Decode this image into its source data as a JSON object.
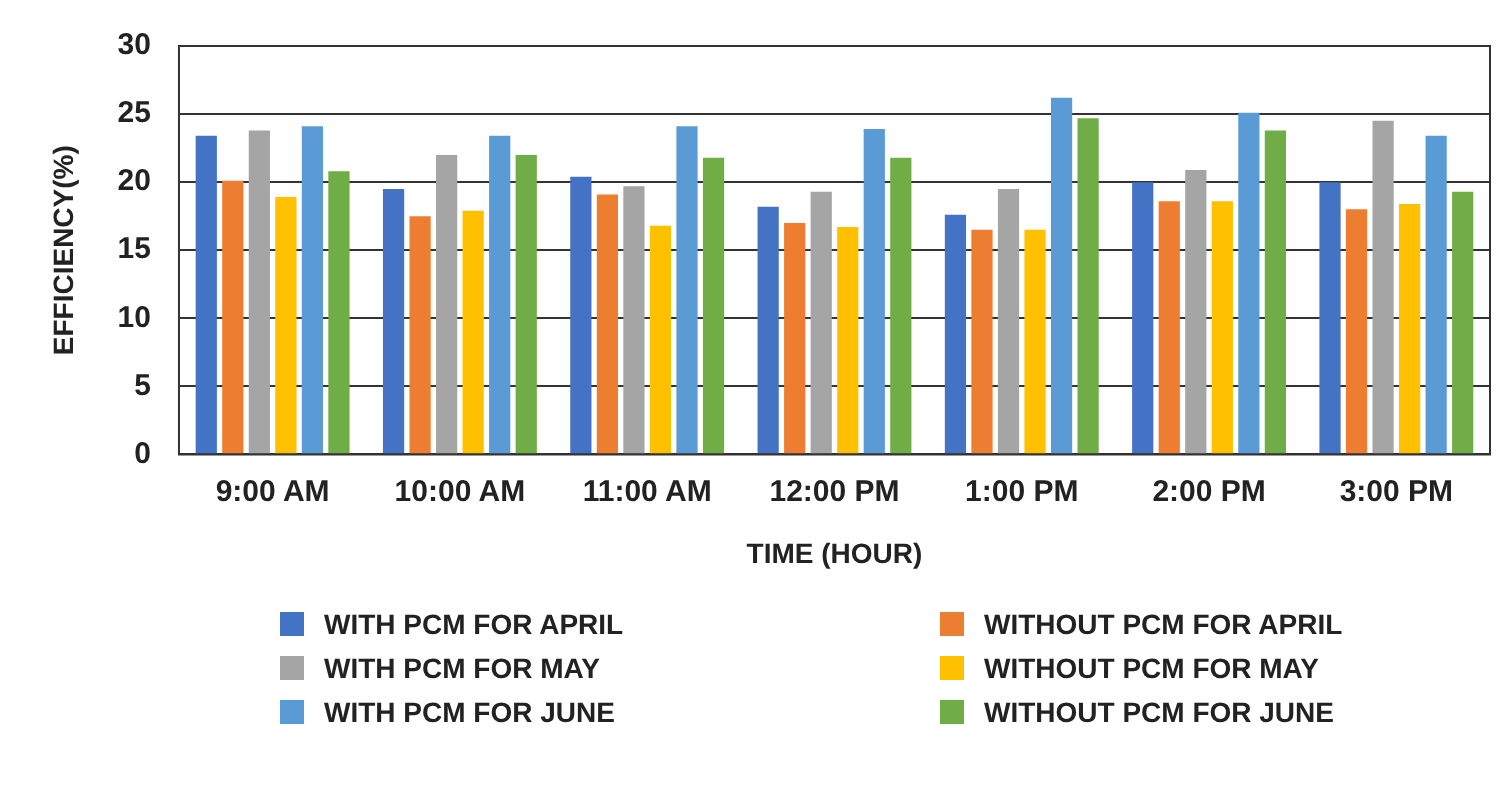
{
  "chart_data": {
    "type": "bar",
    "xlabel": "TIME (HOUR)",
    "ylabel": "EFFICIENCY(%)",
    "categories": [
      "9:00 AM",
      "10:00 AM",
      "11:00 AM",
      "12:00 PM",
      "1:00 PM",
      "2:00 PM",
      "3:00 PM"
    ],
    "series": [
      {
        "name": "WITH PCM FOR APRIL",
        "color": "#4472c4",
        "values": [
          23.4,
          19.5,
          20.4,
          18.2,
          17.6,
          20.0,
          20.0
        ]
      },
      {
        "name": "WITHOUT PCM FOR APRIL",
        "color": "#ed7d31",
        "values": [
          20.1,
          17.5,
          19.1,
          17.0,
          16.5,
          18.6,
          18.0
        ]
      },
      {
        "name": "WITH PCM FOR MAY",
        "color": "#a5a5a5",
        "values": [
          23.8,
          22.0,
          19.7,
          19.3,
          19.5,
          20.9,
          24.5
        ]
      },
      {
        "name": "WITHOUT PCM FOR MAY",
        "color": "#ffc000",
        "values": [
          18.9,
          17.9,
          16.8,
          16.7,
          16.5,
          18.6,
          18.4
        ]
      },
      {
        "name": "WITH PCM FOR JUNE",
        "color": "#5b9bd5",
        "values": [
          24.1,
          23.4,
          24.1,
          23.9,
          26.2,
          25.1,
          23.4
        ]
      },
      {
        "name": "WITHOUT PCM FOR JUNE",
        "color": "#70ad47",
        "values": [
          20.8,
          22.0,
          21.8,
          21.8,
          24.7,
          23.8,
          19.3
        ]
      }
    ],
    "ylim": [
      0,
      30
    ],
    "yticks": [
      0,
      5,
      10,
      15,
      20,
      25,
      30
    ],
    "grid": "y",
    "legend": "bottom"
  }
}
